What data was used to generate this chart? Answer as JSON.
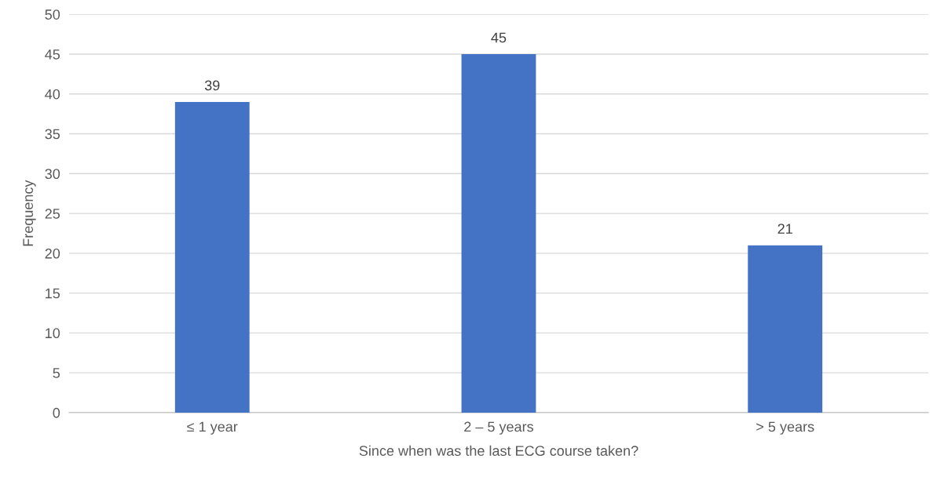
{
  "chart_data": {
    "type": "bar",
    "xlabel": "Since when was the last ECG course taken?",
    "ylabel": "Frequency",
    "categories": [
      "≤ 1 year",
      "2 – 5 years",
      "> 5 years"
    ],
    "values": [
      39,
      45,
      21
    ],
    "color": "#4472c4",
    "ylim": [
      0,
      50
    ],
    "yticks": [
      0,
      5,
      10,
      15,
      20,
      25,
      30,
      35,
      40,
      45,
      50
    ],
    "grid": "y",
    "data_labels": true
  }
}
